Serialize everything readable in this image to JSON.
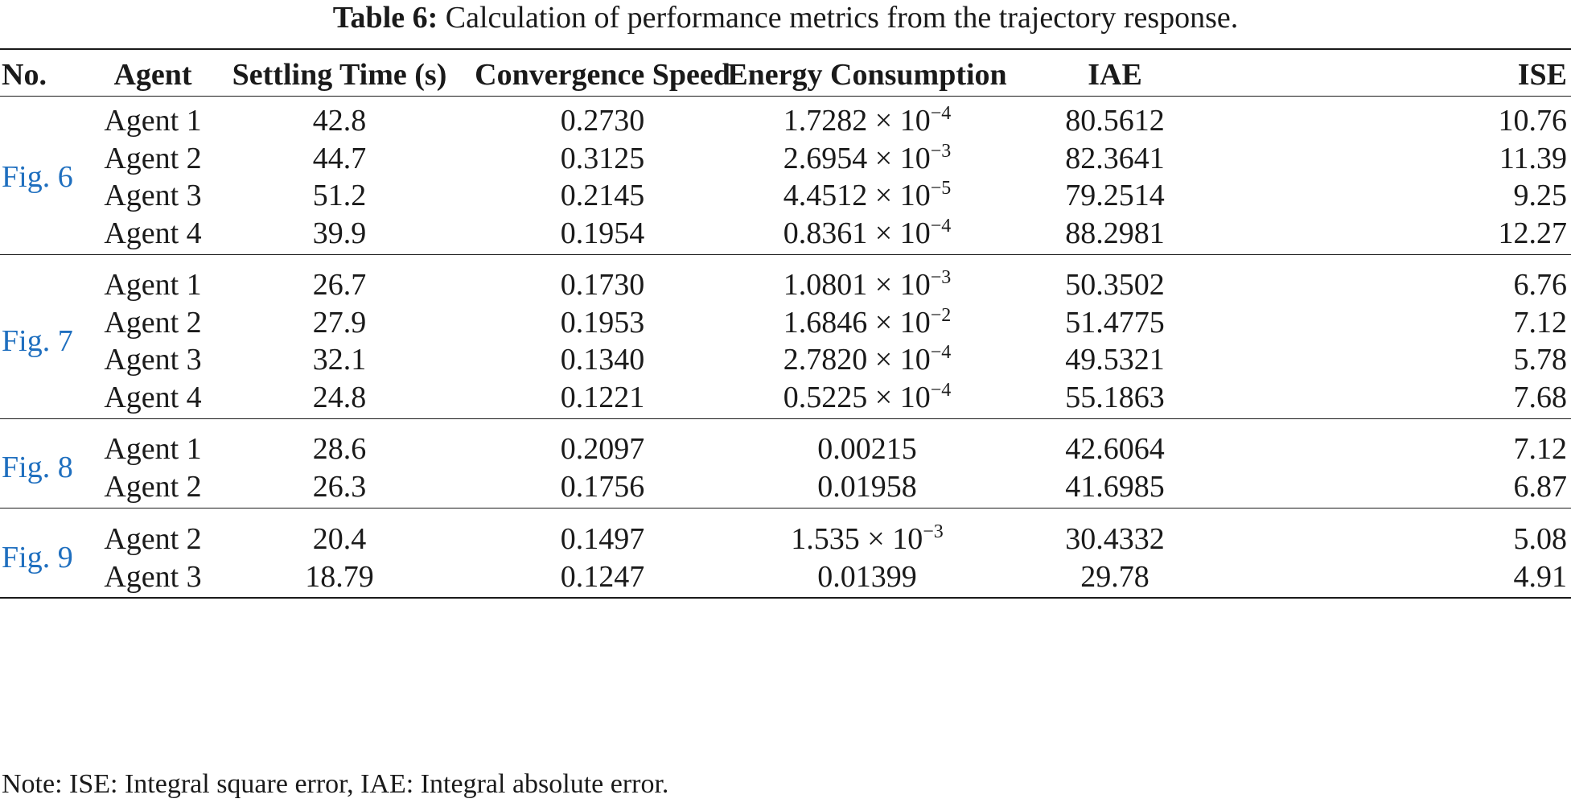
{
  "caption": {
    "label": "Table 6:",
    "text": " Calculation of performance metrics from the trajectory response."
  },
  "headers": [
    "No.",
    "Agent",
    "Settling Time (s)",
    "Convergence Speed",
    "Energy Consumption",
    "IAE",
    "ISE"
  ],
  "groups": [
    {
      "figure": "Fig. 6",
      "rows": [
        {
          "agent": "Agent 1",
          "settling": "42.8",
          "speed": "0.2730",
          "energy": {
            "mantissa": "1.7282",
            "exp": "−4"
          },
          "iae": "80.5612",
          "ise": "10.76"
        },
        {
          "agent": "Agent 2",
          "settling": "44.7",
          "speed": "0.3125",
          "energy": {
            "mantissa": "2.6954",
            "exp": "−3"
          },
          "iae": "82.3641",
          "ise": "11.39"
        },
        {
          "agent": "Agent 3",
          "settling": "51.2",
          "speed": "0.2145",
          "energy": {
            "mantissa": "4.4512",
            "exp": "−5"
          },
          "iae": "79.2514",
          "ise": "9.25"
        },
        {
          "agent": "Agent 4",
          "settling": "39.9",
          "speed": "0.1954",
          "energy": {
            "mantissa": "0.8361",
            "exp": "−4"
          },
          "iae": "88.2981",
          "ise": "12.27"
        }
      ]
    },
    {
      "figure": "Fig. 7",
      "rows": [
        {
          "agent": "Agent 1",
          "settling": "26.7",
          "speed": "0.1730",
          "energy": {
            "mantissa": "1.0801",
            "exp": "−3"
          },
          "iae": "50.3502",
          "ise": "6.76"
        },
        {
          "agent": "Agent 2",
          "settling": "27.9",
          "speed": "0.1953",
          "energy": {
            "mantissa": "1.6846",
            "exp": "−2"
          },
          "iae": "51.4775",
          "ise": "7.12"
        },
        {
          "agent": "Agent 3",
          "settling": "32.1",
          "speed": "0.1340",
          "energy": {
            "mantissa": "2.7820",
            "exp": "−4"
          },
          "iae": "49.5321",
          "ise": "5.78"
        },
        {
          "agent": "Agent 4",
          "settling": "24.8",
          "speed": "0.1221",
          "energy": {
            "mantissa": "0.5225",
            "exp": "−4"
          },
          "iae": "55.1863",
          "ise": "7.68"
        }
      ]
    },
    {
      "figure": "Fig. 8",
      "rows": [
        {
          "agent": "Agent 1",
          "settling": "28.6",
          "speed": "0.2097",
          "energy": {
            "plain": "0.00215"
          },
          "iae": "42.6064",
          "ise": "7.12"
        },
        {
          "agent": "Agent 2",
          "settling": "26.3",
          "speed": "0.1756",
          "energy": {
            "plain": "0.01958"
          },
          "iae": "41.6985",
          "ise": "6.87"
        }
      ]
    },
    {
      "figure": "Fig. 9",
      "rows": [
        {
          "agent": "Agent 2",
          "settling": "20.4",
          "speed": "0.1497",
          "energy": {
            "mantissa": "1.535",
            "exp": "−3"
          },
          "iae": "30.4332",
          "ise": "5.08"
        },
        {
          "agent": "Agent 3",
          "settling": "18.79",
          "speed": "0.1247",
          "energy": {
            "plain": "0.01399"
          },
          "iae": "29.78",
          "ise": "4.91"
        }
      ]
    }
  ],
  "note": "Note: ISE: Integral square error, IAE: Integral absolute error."
}
